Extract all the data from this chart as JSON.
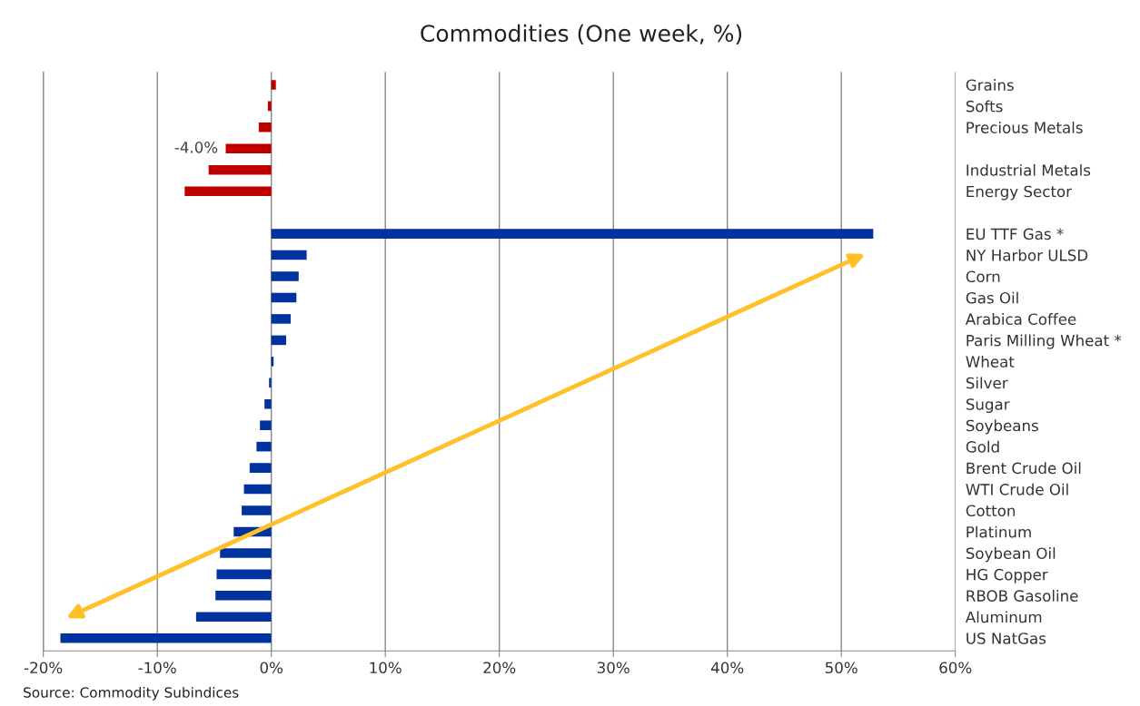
{
  "chart_data": {
    "type": "bar",
    "orientation": "horizontal",
    "title": "Commodities (One week, %)",
    "categories": [
      "Grains",
      "Softs",
      "Precious Metals",
      null,
      "Industrial Metals",
      "Energy Sector",
      null,
      "EU TTF Gas *",
      "NY Harbor ULSD",
      "Corn",
      "Gas Oil",
      "Arabica Coffee",
      "Paris Milling Wheat *",
      "Wheat",
      "Silver",
      "Sugar",
      "Soybeans",
      "Gold",
      "Brent Crude Oil",
      "WTI Crude Oil",
      "Cotton",
      "Platinum",
      "Soybean Oil",
      "HG Copper",
      "RBOB Gasoline",
      "Aluminum",
      "US NatGas"
    ],
    "values": [
      0.4,
      -0.3,
      -1.1,
      -4.0,
      -5.5,
      -7.6,
      null,
      52.8,
      3.1,
      2.4,
      2.2,
      1.7,
      1.3,
      0.2,
      -0.2,
      -0.6,
      -1.0,
      -1.3,
      -1.9,
      -2.4,
      -2.6,
      -3.3,
      -4.5,
      -4.8,
      -4.9,
      -6.6,
      -18.5
    ],
    "colors": [
      "#c00000",
      "#c00000",
      "#c00000",
      "#c00000",
      "#c00000",
      "#c00000",
      "#c00000",
      "#0033a0",
      "#0033a0",
      "#0033a0",
      "#0033a0",
      "#0033a0",
      "#0033a0",
      "#0033a0",
      "#0033a0",
      "#0033a0",
      "#0033a0",
      "#0033a0",
      "#0033a0",
      "#0033a0",
      "#0033a0",
      "#0033a0",
      "#0033a0",
      "#0033a0",
      "#0033a0",
      "#0033a0",
      "#0033a0"
    ],
    "value_labels": [
      null,
      null,
      null,
      "-4.0%",
      null,
      null,
      null,
      null,
      null,
      null,
      null,
      null,
      null,
      null,
      null,
      null,
      null,
      null,
      null,
      null,
      null,
      null,
      null,
      null,
      null,
      null,
      null
    ],
    "xlim": [
      -20,
      60
    ],
    "xticks": [
      {
        "value": -20,
        "label": "-20%"
      },
      {
        "value": -10,
        "label": "-10%"
      },
      {
        "value": 0,
        "label": "0%"
      },
      {
        "value": 10,
        "label": "10%"
      },
      {
        "value": 20,
        "label": "20%"
      },
      {
        "value": 30,
        "label": "30%"
      },
      {
        "value": 40,
        "label": "40%"
      },
      {
        "value": 50,
        "label": "50%"
      },
      {
        "value": 60,
        "label": "60%"
      }
    ],
    "grid": "x",
    "annotations": [
      "Source: Commodity Subindices"
    ]
  }
}
